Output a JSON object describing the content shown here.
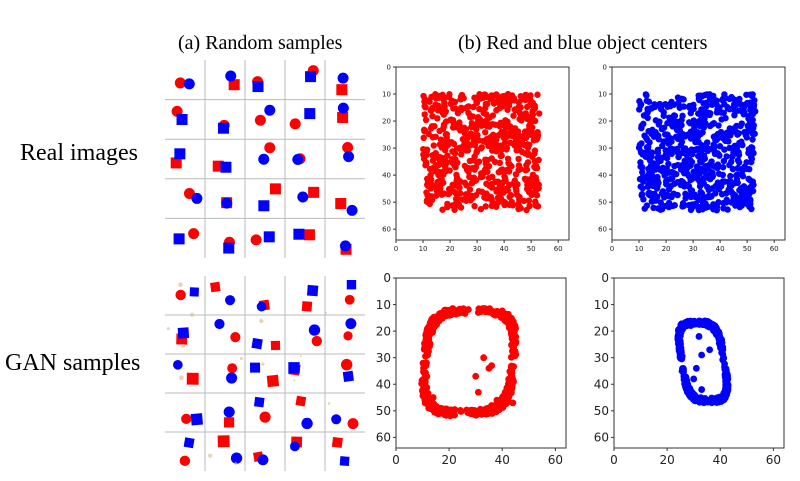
{
  "headers": {
    "col_a": "(a) Random samples",
    "col_b": "(b) Red and blue object centers"
  },
  "row_labels": {
    "real": "Real images",
    "gan": "GAN samples"
  },
  "colors": {
    "red": "#ff0000",
    "blue": "#0000ff",
    "grid_line": "#bbbbbb"
  },
  "chart_data": [
    {
      "type": "scatter",
      "name": "real-red-centers",
      "description": "dense uniform cloud of red points",
      "x_range_points": [
        10,
        53
      ],
      "y_range_points": [
        10,
        53
      ],
      "xlim": [
        0,
        64
      ],
      "ylim": [
        64,
        0
      ],
      "xticks": [
        "0",
        "10",
        "20",
        "30",
        "40",
        "50",
        "60"
      ],
      "yticks": [
        "0",
        "10",
        "20",
        "30",
        "40",
        "50",
        "60"
      ],
      "color": "#ff0000"
    },
    {
      "type": "scatter",
      "name": "real-blue-centers",
      "description": "dense uniform cloud of blue points",
      "x_range_points": [
        10,
        53
      ],
      "y_range_points": [
        10,
        53
      ],
      "xlim": [
        0,
        64
      ],
      "ylim": [
        64,
        0
      ],
      "xticks": [
        "0",
        "10",
        "20",
        "30",
        "40",
        "50",
        "60"
      ],
      "yticks": [
        "0",
        "10",
        "20",
        "30",
        "40",
        "50",
        "60"
      ],
      "color": "#0000ff"
    },
    {
      "type": "scatter",
      "name": "gan-red-centers",
      "description": "ring of red points with a few interior points",
      "x_range_points": [
        10,
        45
      ],
      "y_range_points": [
        11,
        52
      ],
      "interior_points": [
        [
          33,
          30
        ],
        [
          35,
          34
        ],
        [
          36,
          33
        ],
        [
          30,
          37
        ],
        [
          31,
          43
        ],
        [
          40,
          45
        ],
        [
          38,
          46
        ],
        [
          36,
          48
        ],
        [
          44,
          47
        ],
        [
          14,
          45
        ],
        [
          11,
          45
        ]
      ],
      "xlim": [
        0,
        64
      ],
      "ylim": [
        64,
        0
      ],
      "xticks": [
        "0",
        "20",
        "40",
        "60"
      ],
      "yticks": [
        "0",
        "10",
        "20",
        "30",
        "40",
        "50",
        "60"
      ],
      "color": "#ff0000"
    },
    {
      "type": "scatter",
      "name": "gan-blue-centers",
      "description": "compact ring of blue points",
      "x_range_points": [
        25,
        42
      ],
      "y_range_points": [
        16,
        47
      ],
      "interior_points": [
        [
          32,
          22
        ],
        [
          33,
          29
        ],
        [
          31,
          34
        ],
        [
          30,
          38
        ],
        [
          33,
          42
        ],
        [
          36,
          27
        ]
      ],
      "xlim": [
        0,
        64
      ],
      "ylim": [
        64,
        0
      ],
      "xticks": [
        "0",
        "20",
        "40",
        "60"
      ],
      "yticks": [
        "0",
        "10",
        "20",
        "30",
        "40",
        "50",
        "60"
      ],
      "color": "#0000ff"
    }
  ]
}
